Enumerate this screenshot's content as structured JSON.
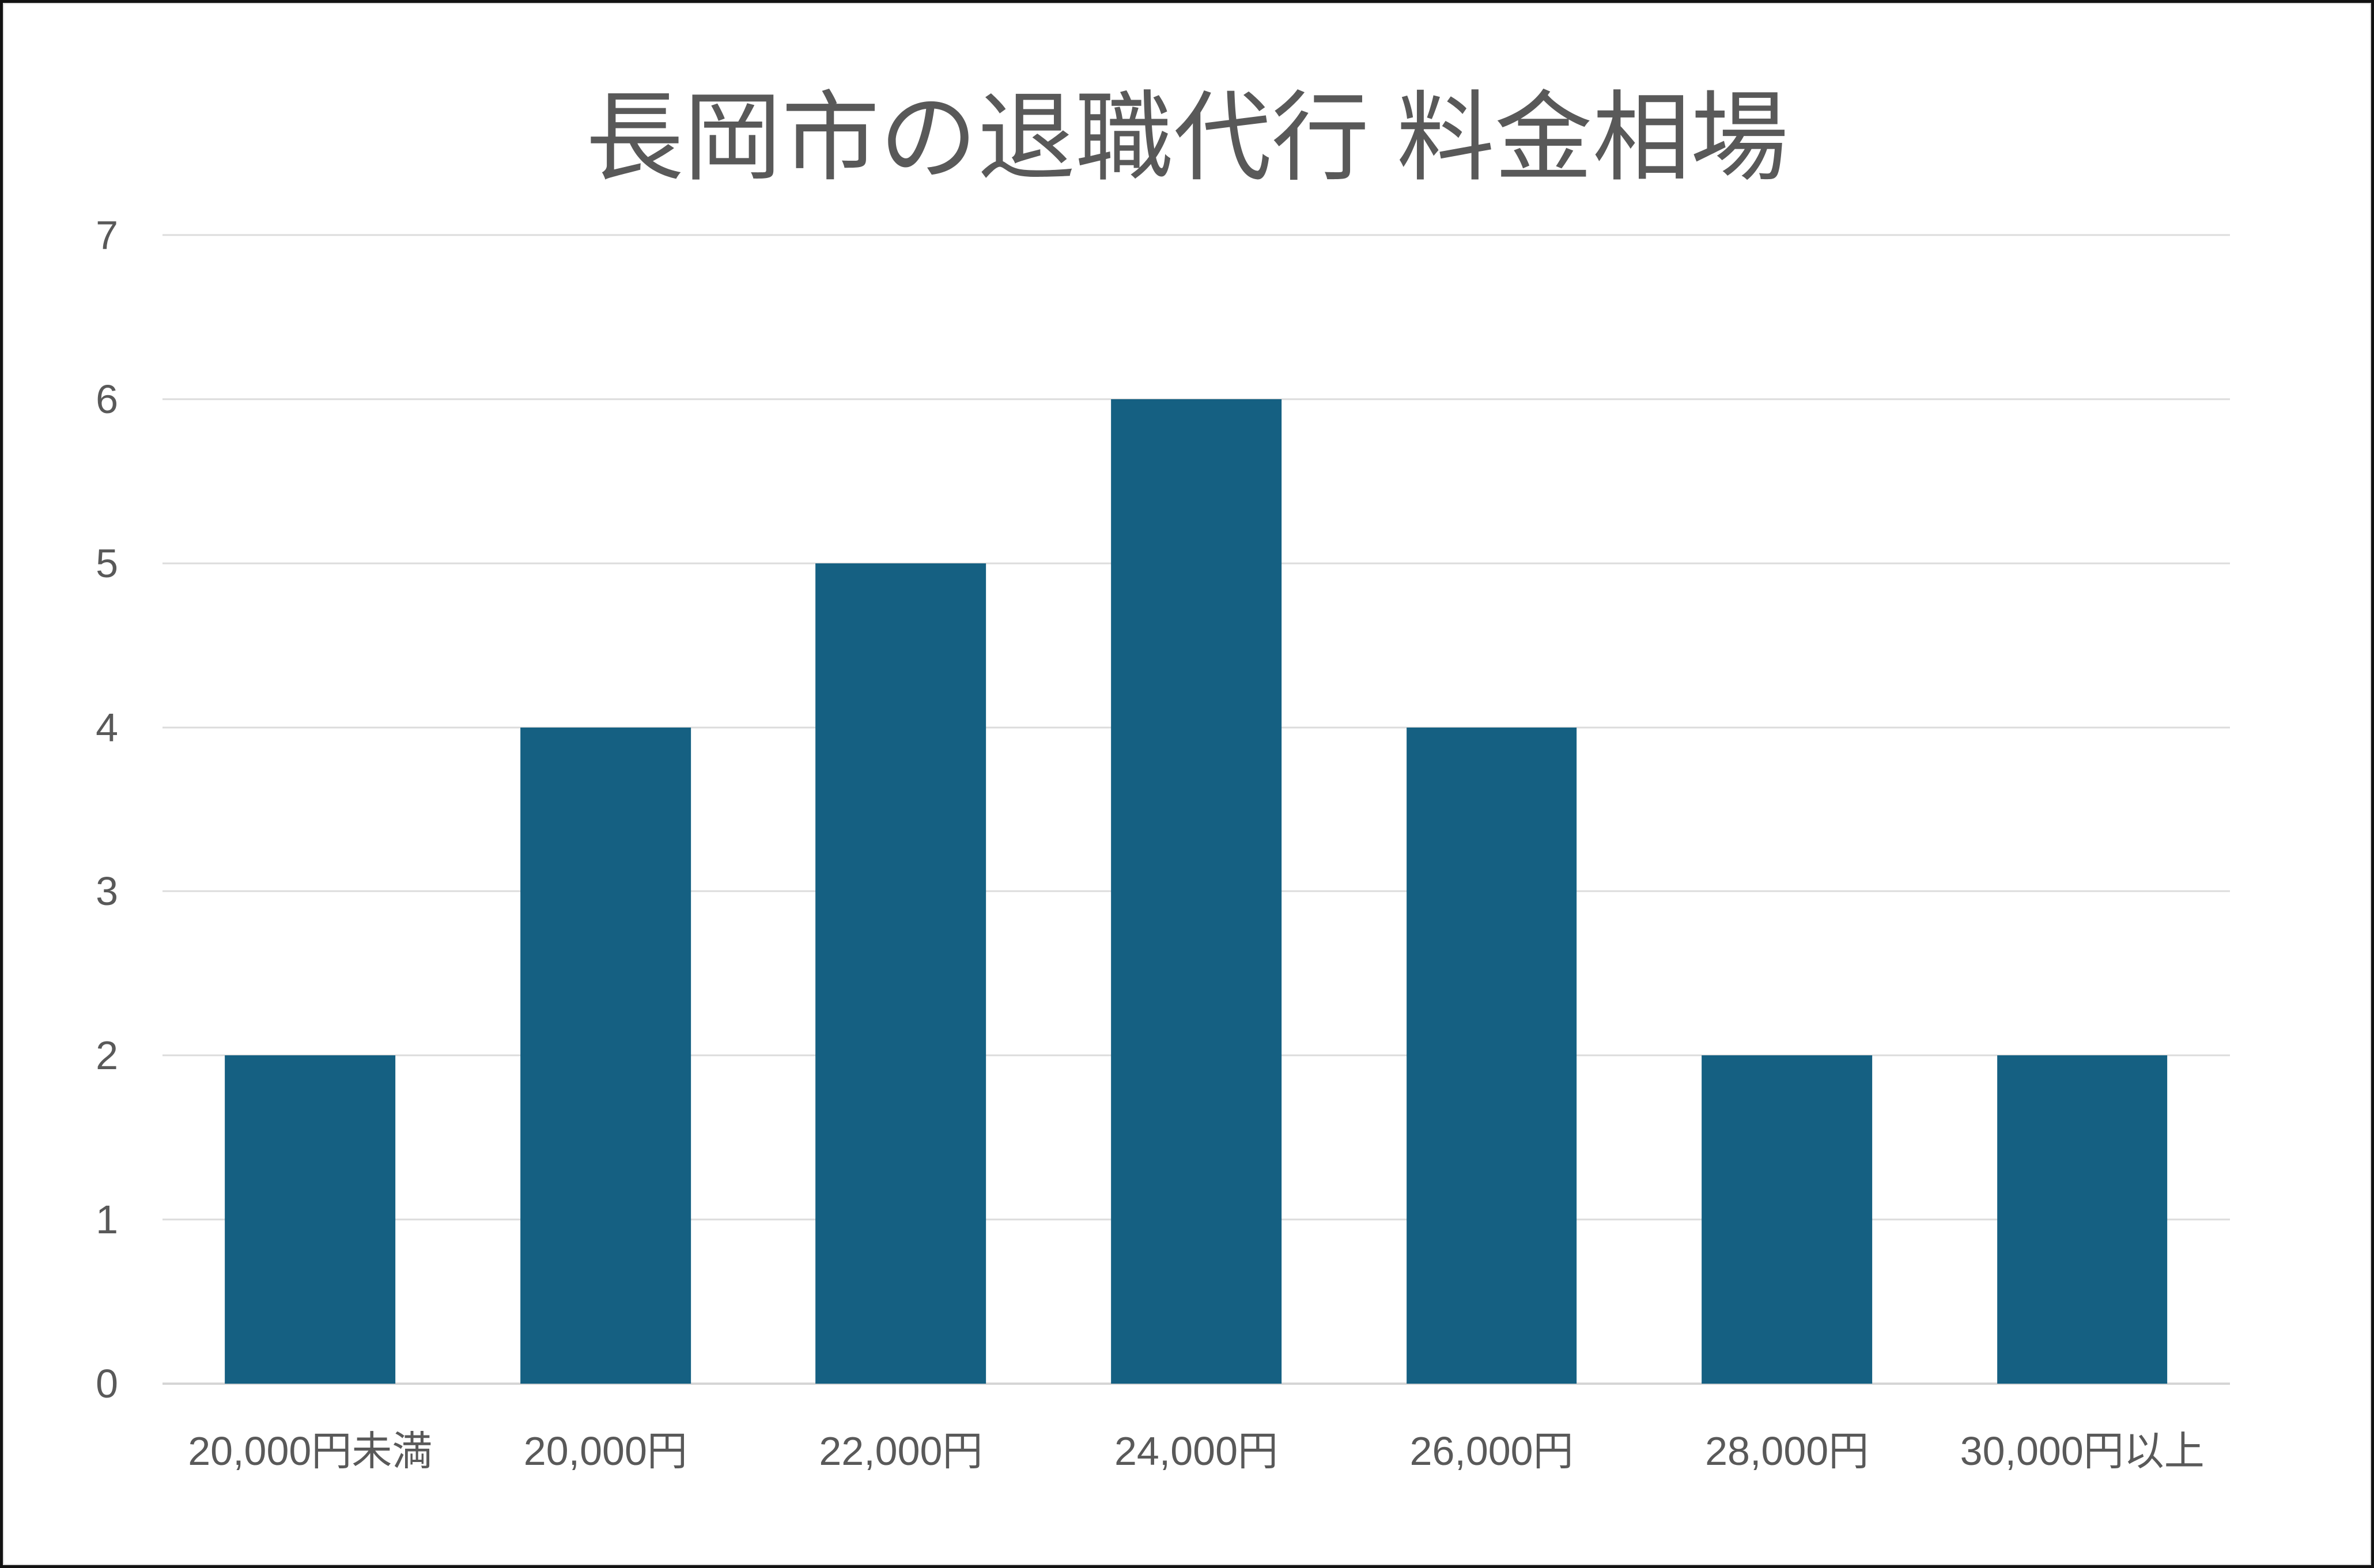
{
  "chart_data": {
    "type": "bar",
    "title": "長岡市の退職代行 料金相場",
    "categories": [
      "20,000円未満",
      "20,000円",
      "22,000円",
      "24,000円",
      "26,000円",
      "28,000円",
      "30,000円以上"
    ],
    "values": [
      2,
      4,
      5,
      6,
      4,
      2,
      2
    ],
    "xlabel": "",
    "ylabel": "",
    "ylim": [
      0,
      7
    ],
    "yticks": [
      0,
      1,
      2,
      3,
      4,
      5,
      6,
      7
    ],
    "grid": true,
    "legend_position": "none",
    "bar_color": "#156082"
  },
  "colors": {
    "background": "#ffffff",
    "bar": "#156082",
    "title_text": "#595959",
    "axis_text": "#595959",
    "gridline": "#dcdcdc",
    "axis_line": "#d5d5d5",
    "outer_border": "#121212",
    "inner_border": "#dedede"
  }
}
